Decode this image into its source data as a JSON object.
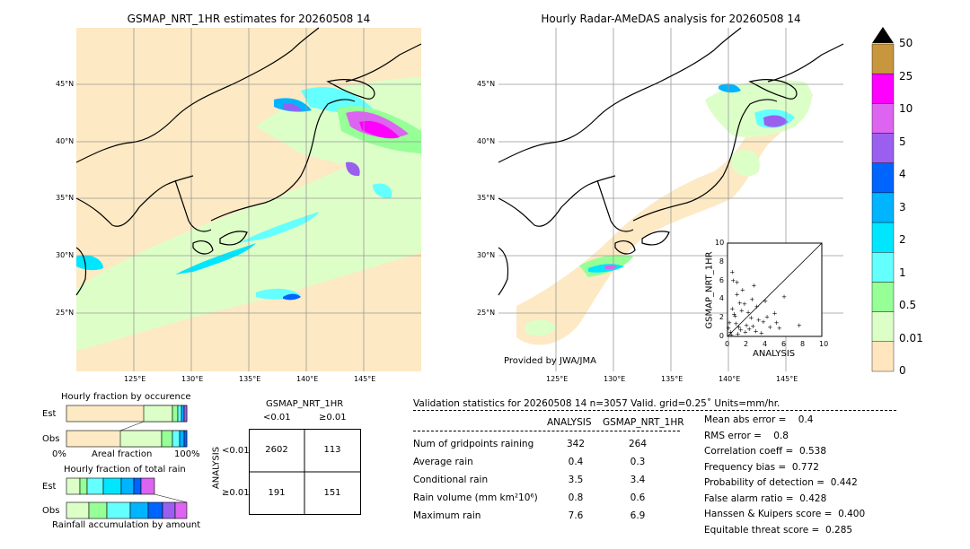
{
  "left_map": {
    "title": "GSMAP_NRT_1HR estimates for 20260508 14",
    "lat_labels": [
      "45°N",
      "40°N",
      "35°N",
      "30°N",
      "25°N"
    ],
    "lon_labels": [
      "125°E",
      "130°E",
      "135°E",
      "140°E",
      "145°E"
    ]
  },
  "right_map": {
    "title": "Hourly Radar-AMeDAS analysis for 20260508 14",
    "lat_labels": [
      "45°N",
      "40°N",
      "35°N",
      "30°N",
      "25°N"
    ],
    "lon_labels": [
      "125°E",
      "130°E",
      "135°E",
      "140°E",
      "145°E"
    ],
    "credit": "Provided by JWA/JMA"
  },
  "inset_scatter": {
    "xlabel": "ANALYSIS",
    "ylabel": "GSMAP_NRT_1HR",
    "ticks": [
      "0",
      "2",
      "4",
      "6",
      "8",
      "10"
    ]
  },
  "colorbar": {
    "labels": [
      "50",
      "25",
      "10",
      "5",
      "4",
      "3",
      "2",
      "1",
      "0.5",
      "0.01",
      "0"
    ],
    "colors": [
      "#c8963c",
      "#ff00ff",
      "#dc64f0",
      "#9b5ff0",
      "#0064ff",
      "#00b4ff",
      "#00e6ff",
      "#64ffff",
      "#96ff96",
      "#dcffc8",
      "#ffe6be"
    ],
    "top_color": "#000000"
  },
  "occurrence": {
    "title": "Hourly fraction by occurence",
    "rows": [
      "Est",
      "Obs"
    ],
    "axis_left": "0%",
    "axis_mid": "Areal fraction",
    "axis_right": "100%"
  },
  "total_rain": {
    "title": "Hourly fraction of total rain",
    "rows": [
      "Est",
      "Obs"
    ],
    "footer": "Rainfall accumulation by amount"
  },
  "contingency": {
    "title": "GSMAP_NRT_1HR",
    "col_headers": [
      "<0.01",
      "≥0.01"
    ],
    "row_axis": "ANALYSIS",
    "row_headers": [
      "<0.01",
      "≥0.01"
    ],
    "cells": [
      [
        "2602",
        "113"
      ],
      [
        "191",
        "151"
      ]
    ]
  },
  "validation": {
    "header": "Validation statistics for 20260508 14  n=3057 Valid. grid=0.25˚ Units=mm/hr.",
    "col_analysis": "ANALYSIS",
    "col_gsmap": "GSMAP_NRT_1HR",
    "rows": [
      {
        "label": "Num of gridpoints raining",
        "analysis": "342",
        "gsmap": "264"
      },
      {
        "label": "Average rain",
        "analysis": "0.4",
        "gsmap": "0.3"
      },
      {
        "label": "Conditional rain",
        "analysis": "3.5",
        "gsmap": "3.4"
      },
      {
        "label": "Rain volume (mm km²10⁶)",
        "analysis": "0.8",
        "gsmap": "0.6"
      },
      {
        "label": "Maximum rain",
        "analysis": "7.6",
        "gsmap": "6.9"
      }
    ],
    "scores": [
      "Mean abs error =    0.4",
      "RMS error =    0.8",
      "Correlation coeff =  0.538",
      "Frequency bias =  0.772",
      "Probability of detection =  0.442",
      "False alarm ratio =  0.428",
      "Hanssen & Kuipers score =  0.400",
      "Equitable threat score =  0.285"
    ]
  },
  "chart_data": [
    {
      "type": "heatmap",
      "title": "GSMAP_NRT_1HR estimates for 20260508 14",
      "xlabel": "",
      "ylabel": "",
      "xlim": [
        120,
        150
      ],
      "ylim": [
        20,
        50
      ],
      "grid": true,
      "units": "mm/hr"
    },
    {
      "type": "heatmap",
      "title": "Hourly Radar-AMeDAS analysis for 20260508 14",
      "xlabel": "",
      "ylabel": "",
      "xlim": [
        120,
        150
      ],
      "ylim": [
        20,
        50
      ],
      "grid": true,
      "units": "mm/hr"
    },
    {
      "type": "scatter",
      "xlabel": "ANALYSIS",
      "ylabel": "GSMAP_NRT_1HR",
      "xlim": [
        0,
        10
      ],
      "ylim": [
        0,
        10
      ],
      "x": [
        0.2,
        0.5,
        0.8,
        1.0,
        1.2,
        1.5,
        1.8,
        2.0,
        2.3,
        2.5,
        2.8,
        3.0,
        3.3,
        3.6,
        4.0,
        4.5,
        5.0,
        5.5,
        6.0,
        7.6,
        0.3,
        0.6,
        1.1,
        1.6,
        2.2,
        3.1,
        3.8,
        0.4,
        0.9,
        1.4,
        2.6,
        0.1,
        0.7,
        1.3,
        1.9,
        2.7,
        0.5,
        1.0,
        4.2,
        5.2
      ],
      "y": [
        1.5,
        3.0,
        2.2,
        4.5,
        1.0,
        2.8,
        3.5,
        1.2,
        0.8,
        2.0,
        5.5,
        0.6,
        1.8,
        0.4,
        3.8,
        1.0,
        2.5,
        0.9,
        4.3,
        1.2,
        0.5,
        6.0,
        0.3,
        5.0,
        2.6,
        3.2,
        1.6,
        0.2,
        1.4,
        0.7,
        4.0,
        0.9,
        2.4,
        3.6,
        0.5,
        1.1,
        6.9,
        5.8,
        2.1,
        1.5
      ]
    },
    {
      "type": "table",
      "title": "GSMAP_NRT_1HR",
      "columns": [
        "<0.01",
        "≥0.01"
      ],
      "rows": [
        "<0.01",
        "≥0.01"
      ],
      "values": [
        [
          2602,
          113
        ],
        [
          191,
          151
        ]
      ]
    }
  ]
}
